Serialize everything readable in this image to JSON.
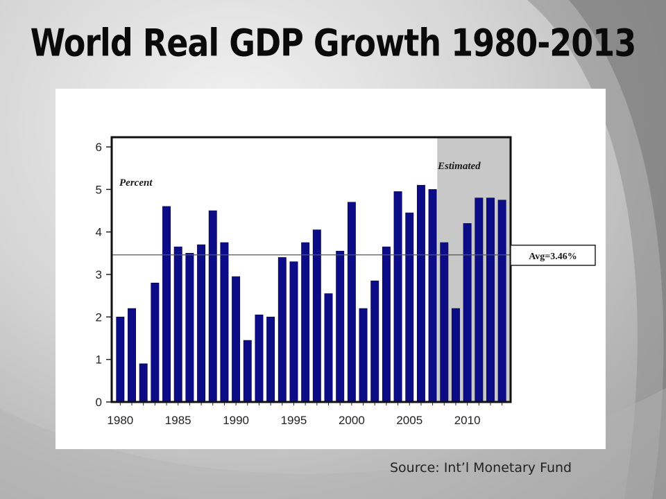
{
  "slide": {
    "title": "World Real GDP Growth 1980-2013",
    "source": "Source: Int’l Monetary Fund"
  },
  "colors": {
    "bar": "#0c0c86",
    "bar_edge": "#05054a",
    "estimated_shade": "#c8c8c8",
    "avg_line": "#555555"
  },
  "chart_data": {
    "type": "bar",
    "title": "",
    "xlabel": "",
    "ylabel": "Percent",
    "ylim": [
      0,
      6
    ],
    "yticks": [
      "0",
      "1",
      "2",
      "3",
      "4",
      "5",
      "6"
    ],
    "xtick_labels": [
      "1980",
      "1985",
      "1990",
      "1995",
      "2000",
      "2005",
      "2010"
    ],
    "categories": [
      "1980",
      "1981",
      "1982",
      "1983",
      "1984",
      "1985",
      "1986",
      "1987",
      "1988",
      "1989",
      "1990",
      "1991",
      "1992",
      "1993",
      "1994",
      "1995",
      "1996",
      "1997",
      "1998",
      "1999",
      "2000",
      "2001",
      "2002",
      "2003",
      "2004",
      "2005",
      "2006",
      "2007",
      "2008",
      "2009",
      "2010",
      "2011",
      "2012",
      "2013"
    ],
    "values": [
      2.0,
      2.2,
      0.9,
      2.8,
      4.6,
      3.65,
      3.5,
      3.7,
      4.5,
      3.75,
      2.95,
      1.45,
      2.05,
      2.0,
      3.4,
      3.3,
      3.75,
      4.05,
      2.55,
      3.55,
      4.7,
      2.2,
      2.85,
      3.65,
      4.95,
      4.45,
      5.1,
      5.0,
      3.75,
      2.2,
      4.2,
      4.8,
      4.8,
      4.75
    ],
    "average": 3.46,
    "average_label": "Avg=3.46%",
    "estimated_label": "Estimated",
    "estimated_from": "2008",
    "grid": false,
    "legend": "none"
  }
}
